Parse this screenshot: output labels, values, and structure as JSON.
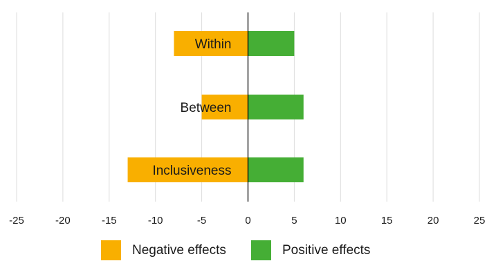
{
  "chart_data": {
    "type": "bar",
    "orientation": "horizontal",
    "stacked": "diverging",
    "categories": [
      "Within",
      "Between",
      "Inclusiveness"
    ],
    "series": [
      {
        "name": "Negative effects",
        "values": [
          -8,
          -5,
          -13
        ],
        "color": "#F9AF00"
      },
      {
        "name": "Positive effects",
        "values": [
          5,
          6,
          6
        ],
        "color": "#45AE35"
      }
    ],
    "xlim": [
      -25,
      25
    ],
    "x_ticks": [
      -25,
      -20,
      -15,
      -10,
      -5,
      0,
      5,
      10,
      15,
      20,
      25
    ],
    "tick_labels": [
      "-25",
      "-20",
      "-15",
      "-10",
      "-5",
      "0",
      "5",
      "10",
      "15",
      "20",
      "25"
    ],
    "grid": true,
    "legend_position": "bottom",
    "title": "",
    "xlabel": "",
    "ylabel": ""
  }
}
